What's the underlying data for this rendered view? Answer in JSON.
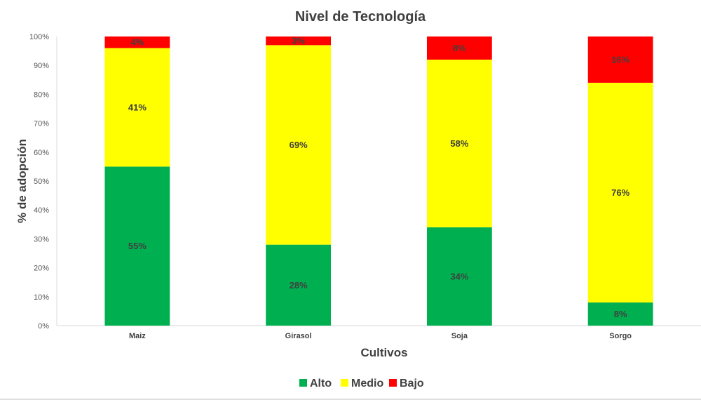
{
  "chart_data": {
    "type": "bar",
    "stacked": true,
    "title": "Nivel de Tecnología",
    "xlabel": "Cultivos",
    "ylabel": "% de adopción",
    "categories": [
      "Maiz",
      "Girasol",
      "Soja",
      "Sorgo"
    ],
    "series": [
      {
        "name": "Alto",
        "values": [
          55,
          28,
          34,
          8
        ],
        "color": "#00b050"
      },
      {
        "name": "Medio",
        "values": [
          41,
          69,
          58,
          76
        ],
        "color": "#ffff00"
      },
      {
        "name": "Bajo",
        "values": [
          4,
          3,
          8,
          16
        ],
        "color": "#ff0000"
      }
    ],
    "data_labels": [
      [
        "55%",
        "28%",
        "34%",
        "8%"
      ],
      [
        "41%",
        "69%",
        "58%",
        "76%"
      ],
      [
        "4%",
        "3%",
        "8%",
        "16%"
      ]
    ],
    "yticks": [
      "0%",
      "10%",
      "20%",
      "30%",
      "40%",
      "50%",
      "60%",
      "70%",
      "80%",
      "90%",
      "100%"
    ],
    "ylim": [
      0,
      100
    ],
    "grid": false,
    "legend_position": "bottom"
  }
}
